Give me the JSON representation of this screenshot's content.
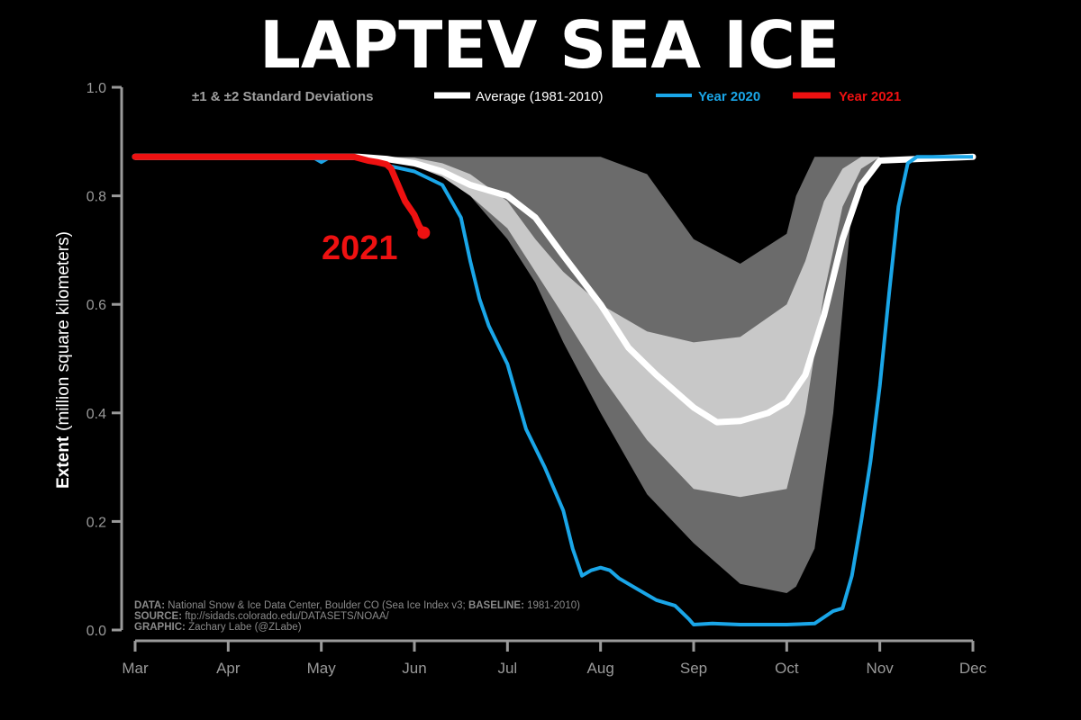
{
  "chart_data": {
    "type": "line",
    "title": "LAPTEV SEA ICE",
    "ylabel": {
      "bold": "Extent",
      "rest": "(million square kilometers)"
    },
    "ylim": [
      0,
      1.0
    ],
    "y_ticks": [
      "0.0",
      "0.2",
      "0.4",
      "0.6",
      "0.8",
      "1.0"
    ],
    "y_tick_values": [
      0,
      0.2,
      0.4,
      0.6,
      0.8,
      1.0
    ],
    "xlim": [
      0,
      9
    ],
    "x_ticks": [
      "Mar",
      "Apr",
      "May",
      "Jun",
      "Jul",
      "Aug",
      "Sep",
      "Oct",
      "Nov",
      "Dec"
    ],
    "x_note": "x values are months after Mar 1 (0 = Mar, 9 = Dec)",
    "legend": {
      "std": "±1 & ±2 Standard Deviations",
      "average": "Average (1981-2010)",
      "y2020": "Year 2020",
      "y2021": "Year 2021"
    },
    "colors": {
      "background": "#000000",
      "std2": "#6b6b6b",
      "std1": "#c8c8c8",
      "average": "#ffffff",
      "y2020": "#1aa6e8",
      "y2021": "#ee1111",
      "axis": "#9a9a9a"
    },
    "annotation": {
      "label": "2021"
    },
    "series": [
      {
        "name": "std2_band",
        "x": [
          0,
          2.3,
          2.6,
          3.0,
          3.3,
          3.6,
          4.0,
          4.3,
          4.6,
          5.0,
          5.5,
          6.0,
          6.5,
          7.0,
          7.1,
          7.3,
          7.5,
          7.7,
          8.0,
          9.0
        ],
        "lower": [
          0.872,
          0.872,
          0.87,
          0.858,
          0.84,
          0.8,
          0.72,
          0.64,
          0.53,
          0.4,
          0.25,
          0.16,
          0.085,
          0.068,
          0.08,
          0.15,
          0.4,
          0.78,
          0.872,
          0.872
        ],
        "upper": [
          0.872,
          0.872,
          0.872,
          0.872,
          0.872,
          0.872,
          0.872,
          0.872,
          0.872,
          0.872,
          0.84,
          0.72,
          0.675,
          0.73,
          0.8,
          0.872,
          0.872,
          0.872,
          0.872,
          0.872
        ]
      },
      {
        "name": "std1_band",
        "x": [
          0,
          2.3,
          2.6,
          3.0,
          3.3,
          3.6,
          4.0,
          4.3,
          4.6,
          5.0,
          5.5,
          6.0,
          6.5,
          7.0,
          7.2,
          7.4,
          7.6,
          7.8,
          8.0,
          9.0
        ],
        "lower": [
          0.872,
          0.872,
          0.868,
          0.855,
          0.835,
          0.8,
          0.74,
          0.66,
          0.58,
          0.47,
          0.35,
          0.26,
          0.245,
          0.26,
          0.4,
          0.62,
          0.78,
          0.85,
          0.872,
          0.872
        ],
        "upper": [
          0.872,
          0.872,
          0.872,
          0.87,
          0.86,
          0.84,
          0.79,
          0.72,
          0.66,
          0.6,
          0.55,
          0.53,
          0.54,
          0.6,
          0.68,
          0.79,
          0.85,
          0.872,
          0.872,
          0.872
        ]
      },
      {
        "name": "Average (1981-2010)",
        "x": [
          0,
          2.4,
          2.7,
          3.0,
          3.3,
          3.6,
          4.0,
          4.3,
          4.6,
          5.0,
          5.3,
          5.6,
          6.0,
          6.25,
          6.5,
          6.8,
          7.0,
          7.2,
          7.4,
          7.6,
          7.8,
          8.0,
          9.0
        ],
        "y": [
          0.872,
          0.872,
          0.868,
          0.86,
          0.845,
          0.82,
          0.8,
          0.76,
          0.69,
          0.6,
          0.52,
          0.47,
          0.41,
          0.383,
          0.385,
          0.4,
          0.42,
          0.47,
          0.58,
          0.72,
          0.82,
          0.865,
          0.872
        ]
      },
      {
        "name": "Year 2020",
        "x": [
          0,
          1.9,
          2.0,
          2.1,
          2.3,
          2.6,
          3.0,
          3.3,
          3.5,
          3.6,
          3.7,
          3.8,
          4.0,
          4.2,
          4.4,
          4.6,
          4.7,
          4.8,
          4.9,
          5.0,
          5.1,
          5.2,
          5.4,
          5.6,
          5.8,
          5.95,
          6.0,
          6.2,
          6.5,
          7.0,
          7.3,
          7.5,
          7.6,
          7.7,
          7.8,
          7.9,
          8.0,
          8.1,
          8.2,
          8.3,
          8.4,
          9.0
        ],
        "y": [
          0.872,
          0.872,
          0.862,
          0.872,
          0.872,
          0.86,
          0.845,
          0.82,
          0.76,
          0.68,
          0.61,
          0.56,
          0.49,
          0.37,
          0.3,
          0.22,
          0.15,
          0.1,
          0.11,
          0.115,
          0.11,
          0.095,
          0.075,
          0.055,
          0.045,
          0.02,
          0.01,
          0.012,
          0.01,
          0.01,
          0.012,
          0.035,
          0.04,
          0.1,
          0.2,
          0.31,
          0.45,
          0.62,
          0.78,
          0.86,
          0.872,
          0.872
        ]
      },
      {
        "name": "Year 2021",
        "x": [
          0,
          2.35,
          2.5,
          2.6,
          2.7,
          2.75,
          2.8,
          2.85,
          2.9,
          3.0,
          3.05,
          3.1
        ],
        "y": [
          0.872,
          0.872,
          0.865,
          0.862,
          0.858,
          0.85,
          0.83,
          0.81,
          0.79,
          0.765,
          0.745,
          0.732
        ]
      }
    ]
  },
  "credits": {
    "data_label": "DATA:",
    "data_text": " National Snow & Ice Data Center, Boulder CO (Sea Ice Index v3; ",
    "baseline_label": "BASELINE:",
    "baseline_text": " 1981-2010)",
    "source_label": "SOURCE:",
    "source_text": " ftp://sidads.colorado.edu/DATASETS/NOAA/",
    "graphic_label": "GRAPHIC:",
    "graphic_text": " Zachary Labe (@ZLabe)"
  }
}
